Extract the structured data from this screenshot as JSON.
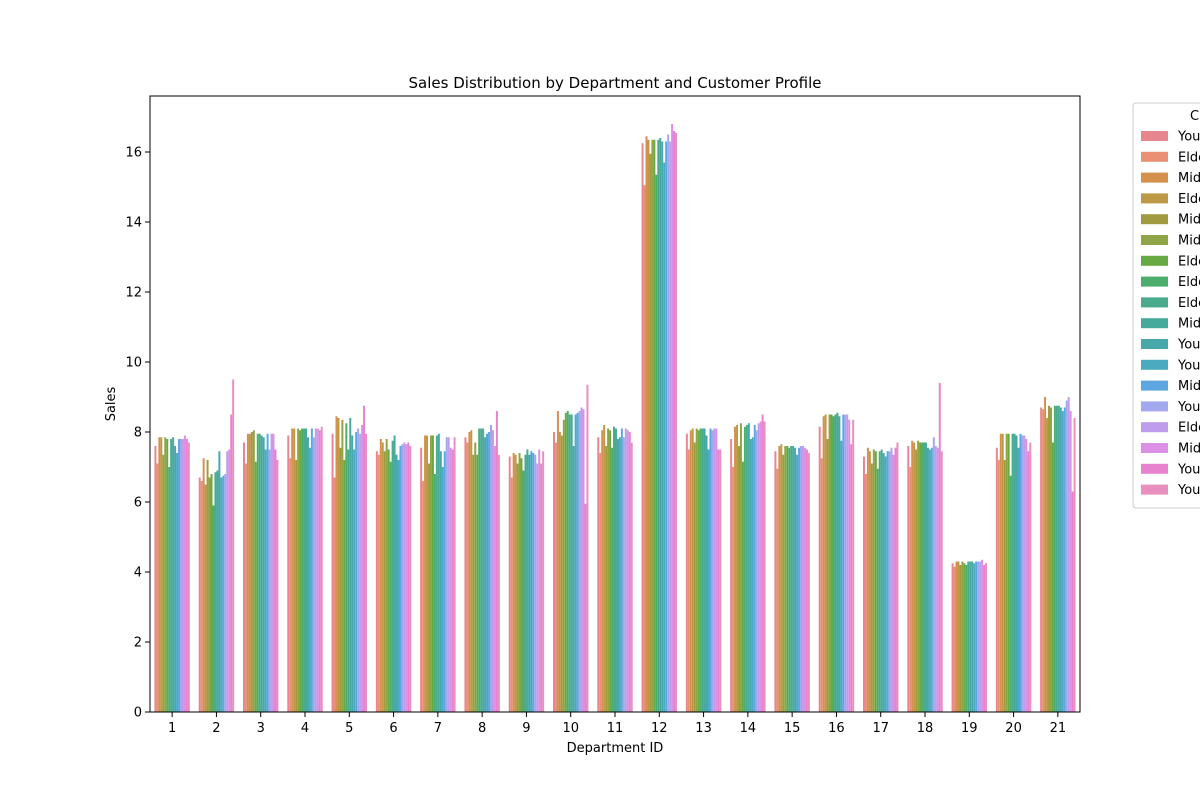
{
  "chart_data": {
    "type": "bar",
    "title": "Sales Distribution by Department and Customer Profile",
    "xlabel": "Department ID",
    "ylabel": "Sales",
    "legend_title": "C",
    "legend_position": "outside-right",
    "grid": false,
    "ylim": [
      0,
      17.6
    ],
    "yticks": [
      0,
      2,
      4,
      6,
      8,
      10,
      12,
      14,
      16
    ],
    "categories": [
      "1",
      "2",
      "3",
      "4",
      "5",
      "6",
      "7",
      "8",
      "9",
      "10",
      "11",
      "12",
      "13",
      "14",
      "15",
      "16",
      "17",
      "18",
      "19",
      "20",
      "21"
    ],
    "series": [
      {
        "name": "You",
        "color": "#e8858f",
        "values": [
          7.6,
          6.7,
          7.7,
          7.9,
          7.95,
          7.45,
          7.55,
          7.85,
          7.3,
          8.0,
          7.85,
          16.25,
          7.95,
          7.8,
          7.45,
          8.15,
          7.3,
          7.6,
          4.25,
          7.55,
          8.7
        ]
      },
      {
        "name": "Elde",
        "color": "#ea9175",
        "values": [
          7.1,
          6.6,
          7.1,
          7.25,
          6.7,
          7.35,
          6.6,
          7.7,
          6.7,
          7.7,
          7.4,
          15.05,
          7.5,
          7.0,
          6.95,
          7.25,
          6.8,
          7.0,
          4.15,
          7.2,
          8.65
        ]
      },
      {
        "name": "Mid",
        "color": "#d5904d",
        "values": [
          7.85,
          7.25,
          7.95,
          8.1,
          8.45,
          7.8,
          7.9,
          8.0,
          7.4,
          8.6,
          8.05,
          16.45,
          8.05,
          8.15,
          7.6,
          8.45,
          7.55,
          7.75,
          4.3,
          7.95,
          9.0
        ]
      },
      {
        "name": "Elde",
        "color": "#be9945",
        "values": [
          7.85,
          6.5,
          7.95,
          8.1,
          8.4,
          7.7,
          7.9,
          8.05,
          7.35,
          8.0,
          8.2,
          16.35,
          8.1,
          8.2,
          7.65,
          8.5,
          7.45,
          7.7,
          4.3,
          7.95,
          8.4
        ]
      },
      {
        "name": "Mid",
        "color": "#a29a40",
        "values": [
          7.35,
          7.2,
          8.0,
          7.2,
          7.55,
          7.45,
          7.1,
          7.35,
          7.1,
          7.9,
          7.6,
          15.95,
          7.7,
          7.6,
          7.35,
          7.8,
          7.1,
          7.5,
          4.2,
          7.2,
          8.75
        ]
      },
      {
        "name": "Mid",
        "color": "#8ea447",
        "values": [
          7.85,
          6.7,
          8.05,
          8.1,
          8.35,
          7.8,
          7.9,
          7.7,
          7.4,
          8.35,
          8.1,
          16.35,
          8.1,
          8.25,
          7.6,
          8.5,
          7.5,
          7.75,
          4.3,
          7.95,
          8.7
        ]
      },
      {
        "name": "Elde",
        "color": "#67aa42",
        "values": [
          7.8,
          6.8,
          7.15,
          8.05,
          7.2,
          7.5,
          7.9,
          7.35,
          7.25,
          8.55,
          8.05,
          16.35,
          8.05,
          7.15,
          7.6,
          8.5,
          7.45,
          7.7,
          4.25,
          7.95,
          7.7
        ]
      },
      {
        "name": "Elde",
        "color": "#4bae6c",
        "values": [
          7.0,
          5.9,
          7.95,
          8.1,
          8.25,
          7.15,
          6.8,
          8.1,
          6.9,
          8.6,
          7.55,
          15.35,
          8.1,
          8.15,
          7.55,
          8.45,
          6.95,
          7.7,
          4.2,
          6.75,
          8.75
        ]
      },
      {
        "name": "Elde",
        "color": "#49aa8d",
        "values": [
          7.8,
          6.85,
          7.95,
          8.1,
          7.5,
          7.75,
          7.9,
          8.1,
          7.35,
          8.5,
          8.15,
          16.35,
          8.1,
          8.2,
          7.6,
          8.5,
          7.45,
          7.7,
          4.3,
          7.95,
          8.75
        ]
      },
      {
        "name": "Mid",
        "color": "#45a99b",
        "values": [
          7.85,
          6.9,
          7.9,
          8.1,
          8.4,
          7.9,
          7.95,
          8.1,
          7.5,
          8.5,
          8.1,
          16.4,
          8.1,
          8.25,
          7.6,
          8.55,
          7.5,
          7.7,
          4.3,
          7.95,
          8.75
        ]
      },
      {
        "name": "You",
        "color": "#47a7ab",
        "values": [
          7.6,
          7.45,
          7.85,
          7.85,
          7.9,
          7.35,
          7.45,
          7.85,
          7.35,
          7.6,
          7.8,
          16.3,
          7.9,
          7.8,
          7.55,
          8.45,
          7.4,
          7.55,
          4.3,
          7.9,
          8.7
        ]
      },
      {
        "name": "You",
        "color": "#49aac0",
        "values": [
          7.4,
          6.7,
          7.5,
          7.55,
          7.5,
          7.2,
          7.0,
          7.95,
          7.45,
          8.5,
          7.85,
          15.7,
          7.5,
          7.85,
          7.35,
          7.75,
          7.3,
          7.5,
          4.25,
          7.55,
          8.6
        ]
      },
      {
        "name": "Mid",
        "color": "#5ea6e0",
        "values": [
          7.8,
          6.75,
          7.95,
          8.1,
          8.0,
          7.6,
          7.45,
          8.0,
          7.4,
          8.55,
          8.1,
          16.3,
          8.1,
          8.2,
          7.55,
          8.5,
          7.45,
          7.55,
          4.3,
          7.95,
          8.7
        ]
      },
      {
        "name": "You",
        "color": "#a1a8ee",
        "values": [
          7.8,
          6.8,
          7.5,
          7.85,
          8.1,
          7.65,
          7.85,
          8.2,
          7.35,
          8.6,
          7.85,
          16.5,
          8.05,
          8.05,
          7.6,
          8.5,
          7.45,
          7.85,
          4.3,
          7.9,
          8.9
        ]
      },
      {
        "name": "Elde",
        "color": "#bf9cec",
        "values": [
          7.8,
          7.45,
          7.95,
          8.1,
          7.95,
          7.7,
          7.85,
          8.05,
          7.1,
          8.7,
          8.1,
          16.3,
          8.1,
          8.25,
          7.6,
          8.5,
          7.55,
          7.6,
          4.3,
          7.9,
          9.0
        ]
      },
      {
        "name": "Mid",
        "color": "#db90e5",
        "values": [
          7.9,
          7.5,
          7.95,
          8.1,
          8.2,
          7.65,
          7.55,
          7.6,
          7.5,
          8.65,
          8.05,
          16.8,
          8.1,
          8.3,
          7.55,
          8.35,
          7.35,
          7.55,
          4.35,
          7.8,
          8.6
        ]
      },
      {
        "name": "You",
        "color": "#e882cf",
        "values": [
          7.8,
          8.5,
          7.5,
          8.05,
          8.75,
          7.7,
          7.5,
          8.6,
          7.1,
          5.95,
          8.0,
          16.6,
          7.5,
          8.5,
          7.5,
          7.65,
          7.55,
          9.4,
          4.2,
          7.45,
          6.3
        ]
      },
      {
        "name": "You",
        "color": "#e88fbf",
        "values": [
          7.7,
          9.5,
          7.2,
          8.15,
          7.95,
          7.6,
          7.85,
          7.35,
          7.45,
          9.35,
          7.7,
          16.55,
          7.5,
          8.3,
          7.4,
          8.35,
          7.7,
          7.45,
          4.25,
          7.7,
          8.4
        ]
      }
    ]
  }
}
